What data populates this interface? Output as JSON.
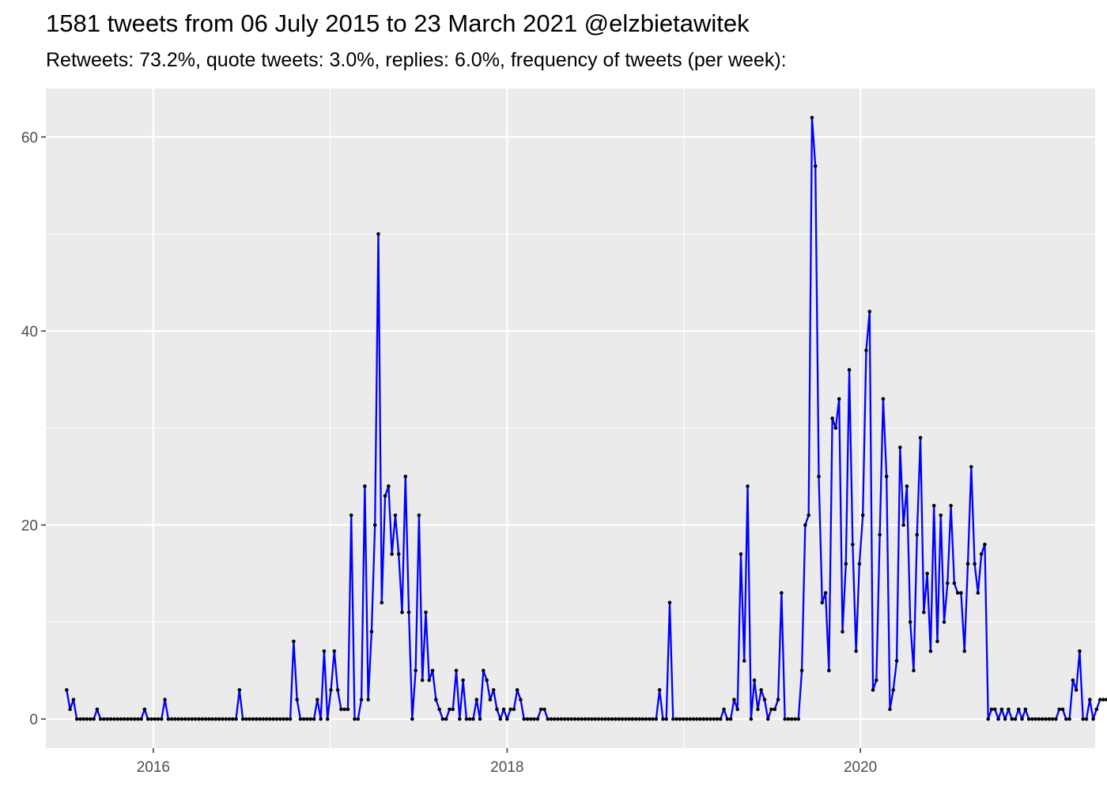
{
  "chart_data": {
    "type": "line",
    "title": "1581 tweets from 06 July 2015 to 23 March 2021 @elzbietawitek",
    "subtitle": "Retweets: 73.2%, quote tweets: 3.0%, replies: 6.0%, frequency of tweets (per week):",
    "xlabel": "",
    "ylabel": "",
    "x_start": "2015-07-06",
    "x_interval_days": 7,
    "xlim": [
      "2015-05-24",
      "2021-04-30"
    ],
    "ylim": [
      -3,
      65
    ],
    "x_ticks": [
      {
        "label": "2016",
        "date": "2016-01-01"
      },
      {
        "label": "2018",
        "date": "2018-01-01"
      },
      {
        "label": "2020",
        "date": "2020-01-01"
      }
    ],
    "y_ticks": [
      0,
      20,
      40,
      60
    ],
    "grid": true,
    "line_color": "#0000ff",
    "point_color": "#000000",
    "panel_color": "#ebebeb",
    "values": [
      3,
      1,
      2,
      0,
      0,
      0,
      0,
      0,
      0,
      1,
      0,
      0,
      0,
      0,
      0,
      0,
      0,
      0,
      0,
      0,
      0,
      0,
      0,
      1,
      0,
      0,
      0,
      0,
      0,
      2,
      0,
      0,
      0,
      0,
      0,
      0,
      0,
      0,
      0,
      0,
      0,
      0,
      0,
      0,
      0,
      0,
      0,
      0,
      0,
      0,
      0,
      3,
      0,
      0,
      0,
      0,
      0,
      0,
      0,
      0,
      0,
      0,
      0,
      0,
      0,
      0,
      0,
      8,
      2,
      0,
      0,
      0,
      0,
      0,
      2,
      0,
      7,
      0,
      3,
      7,
      3,
      1,
      1,
      1,
      21,
      0,
      0,
      2,
      24,
      2,
      9,
      20,
      50,
      12,
      23,
      24,
      17,
      21,
      17,
      11,
      25,
      11,
      0,
      5,
      21,
      4,
      11,
      4,
      5,
      2,
      1,
      0,
      0,
      1,
      1,
      5,
      0,
      4,
      0,
      0,
      0,
      2,
      0,
      5,
      4,
      2,
      3,
      1,
      0,
      1,
      0,
      1,
      1,
      3,
      2,
      0,
      0,
      0,
      0,
      0,
      1,
      1,
      0,
      0,
      0,
      0,
      0,
      0,
      0,
      0,
      0,
      0,
      0,
      0,
      0,
      0,
      0,
      0,
      0,
      0,
      0,
      0,
      0,
      0,
      0,
      0,
      0,
      0,
      0,
      0,
      0,
      0,
      0,
      0,
      0,
      3,
      0,
      0,
      12,
      0,
      0,
      0,
      0,
      0,
      0,
      0,
      0,
      0,
      0,
      0,
      0,
      0,
      0,
      0,
      1,
      0,
      0,
      2,
      1,
      17,
      6,
      24,
      0,
      4,
      1,
      3,
      2,
      0,
      1,
      1,
      2,
      13,
      0,
      0,
      0,
      0,
      0,
      5,
      20,
      21,
      62,
      57,
      25,
      12,
      13,
      5,
      31,
      30,
      33,
      9,
      16,
      36,
      18,
      7,
      16,
      21,
      38,
      42,
      3,
      4,
      19,
      33,
      25,
      1,
      3,
      6,
      28,
      20,
      24,
      10,
      5,
      19,
      29,
      11,
      15,
      7,
      22,
      8,
      21,
      10,
      14,
      22,
      14,
      13,
      13,
      7,
      16,
      26,
      16,
      13,
      17,
      18,
      0,
      1,
      1,
      0,
      1,
      0,
      1,
      0,
      0,
      1,
      0,
      1,
      0,
      0,
      0,
      0,
      0,
      0,
      0,
      0,
      0,
      1,
      1,
      0,
      0,
      4,
      3,
      7,
      0,
      0,
      2,
      0,
      1,
      2,
      2,
      2
    ]
  }
}
